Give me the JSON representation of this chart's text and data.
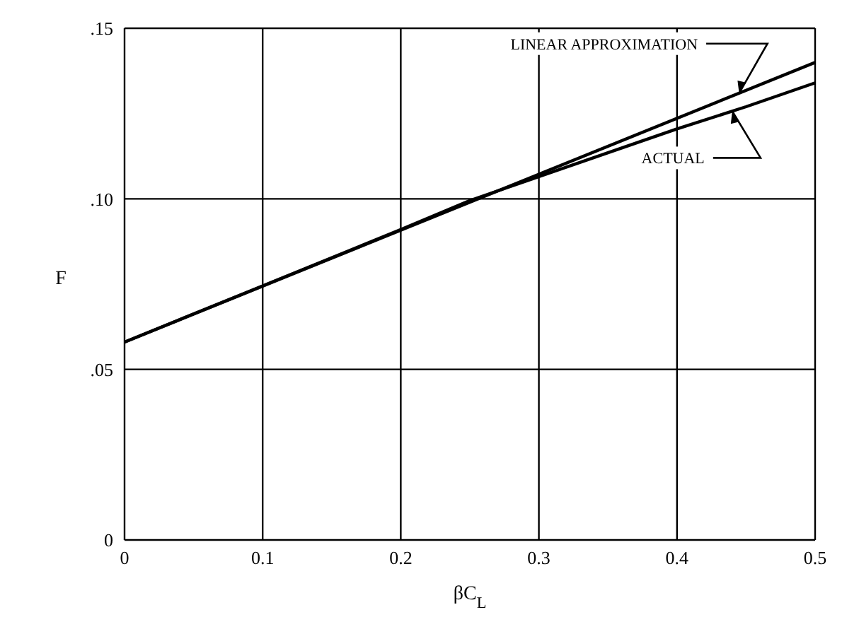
{
  "chart_data": {
    "type": "line",
    "xlabel": "βC$_{L}$",
    "ylabel": "F",
    "xlim": [
      0,
      0.5
    ],
    "xticks": [
      0,
      0.1,
      0.2,
      0.3,
      0.4,
      0.5
    ],
    "ylim": [
      0,
      0.15
    ],
    "yticks": [
      0,
      {
        "value": 0.05,
        "label": ".05"
      },
      {
        "value": 0.1,
        "label": ".10"
      },
      {
        "value": 0.15,
        "label": ".15"
      }
    ],
    "grid": true,
    "marker": "none",
    "line_style": "solid",
    "series": [
      {
        "name": "LINEAR APPROXIMATION",
        "color": "#000000",
        "x": [
          0,
          0.5
        ],
        "values": [
          0.058,
          0.14
        ]
      },
      {
        "name": "ACTUAL",
        "color": "#000000",
        "x": [
          0,
          0.1,
          0.2,
          0.25,
          0.3,
          0.35,
          0.4,
          0.45,
          0.5
        ],
        "values": [
          0.058,
          0.0745,
          0.091,
          0.0995,
          0.1065,
          0.1135,
          0.1205,
          0.127,
          0.134
        ]
      }
    ]
  }
}
